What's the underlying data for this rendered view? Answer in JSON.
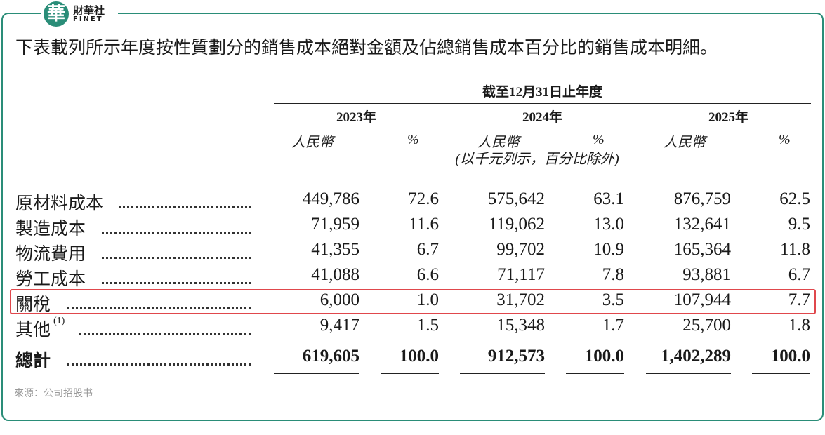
{
  "logo": {
    "mark": "華",
    "name": "財華社",
    "latin": "FINET"
  },
  "intro": "下表載列所示年度按性質劃分的銷售成本絕對金額及佔總銷售成本百分比的銷售成本明細。",
  "table": {
    "period": "截至12月31日止年度",
    "years": [
      "2023年",
      "2024年",
      "2025年"
    ],
    "subheaders": [
      "人民幣",
      "%"
    ],
    "unit_note": "(以千元列示，百分比除外)",
    "rows": [
      [
        "原材料成本",
        "449,786",
        "72.6",
        "575,642",
        "63.1",
        "876,759",
        "62.5"
      ],
      [
        "製造成本",
        "71,959",
        "11.6",
        "119,062",
        "13.0",
        "132,641",
        "9.5"
      ],
      [
        "物流費用",
        "41,355",
        "6.7",
        "99,702",
        "10.9",
        "165,364",
        "11.8"
      ],
      [
        "勞工成本",
        "41,088",
        "6.6",
        "71,117",
        "7.8",
        "93,881",
        "6.7"
      ],
      [
        "關稅",
        "6,000",
        "1.0",
        "31,702",
        "3.5",
        "107,944",
        "7.7"
      ],
      [
        "其他",
        "9,417",
        "1.5",
        "15,348",
        "1.7",
        "25,700",
        "1.8"
      ]
    ],
    "footnote_mark": "(1)",
    "total": [
      "總計",
      "619,605",
      "100.0",
      "912,573",
      "100.0",
      "1,402,289",
      "100.0"
    ]
  },
  "source": "來源：公司招股书"
}
